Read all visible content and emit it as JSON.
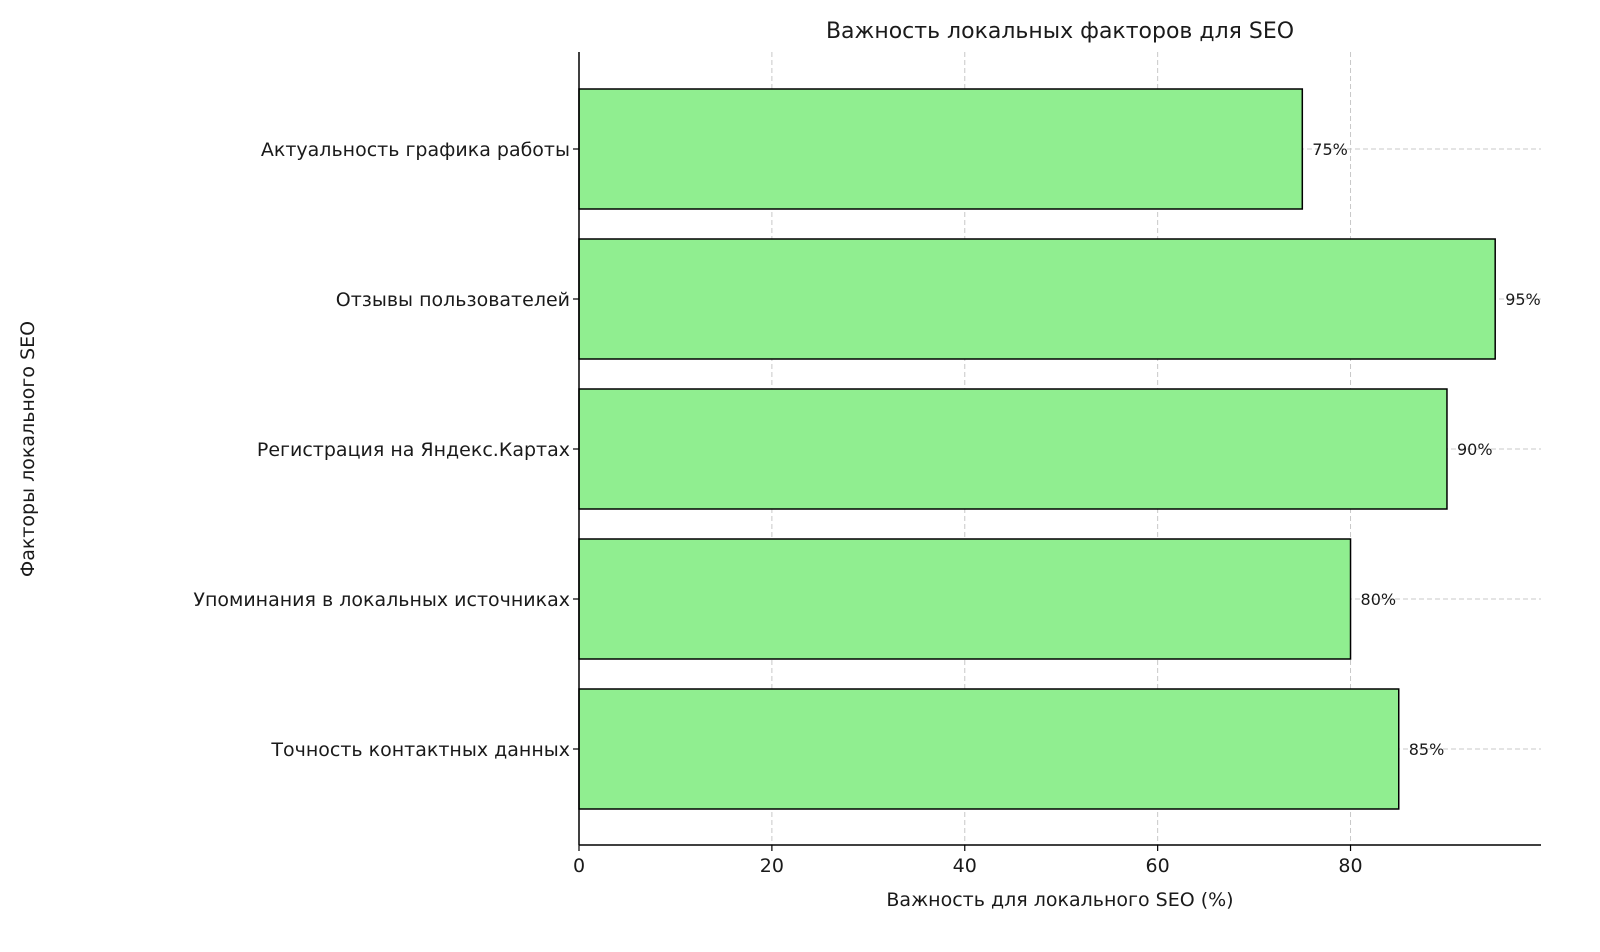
{
  "chart_data": {
    "type": "bar",
    "orientation": "horizontal",
    "title": "Важность локальных факторов для SEO",
    "xlabel": "Важность для локального SEO (%)",
    "ylabel": "Факторы локального SEO",
    "categories": [
      "Точность контактных данных",
      "Упоминания в локальных источниках",
      "Регистрация на Яндекс.Картах",
      "Отзывы пользователей",
      "Актуальность графика работы"
    ],
    "values": [
      85,
      80,
      90,
      95,
      75
    ],
    "data_labels": [
      "85%",
      "80%",
      "90%",
      "95%",
      "75%"
    ],
    "xlim": [
      0,
      99.75
    ],
    "xticks": [
      0,
      20,
      40,
      60,
      80
    ],
    "xtick_labels": [
      "0",
      "20",
      "40",
      "60",
      "80"
    ],
    "grid": true,
    "bar_color": "#90EE90",
    "edge_color": "#000000"
  }
}
